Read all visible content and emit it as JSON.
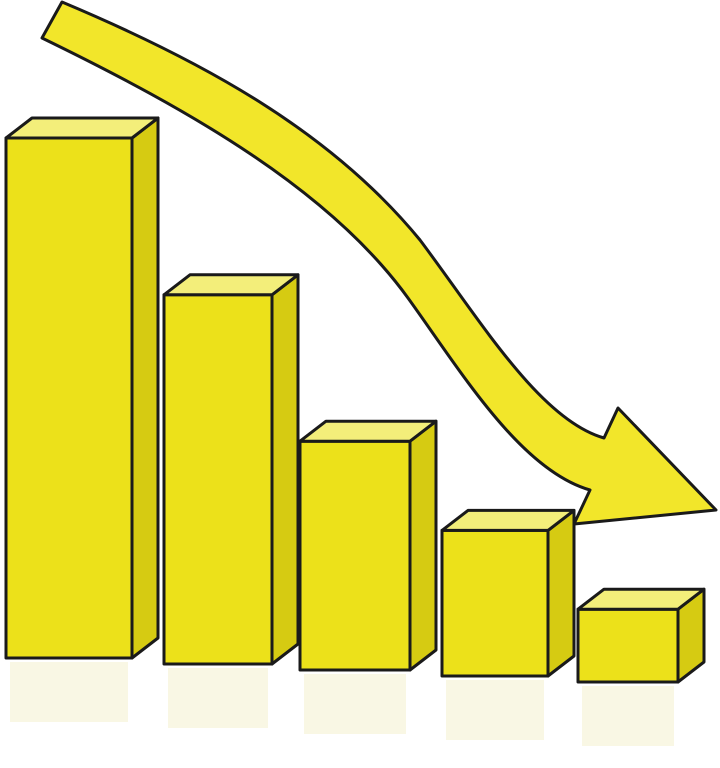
{
  "colors": {
    "background": "#ffffff",
    "front": "#ece11a",
    "side": "#d6cb12",
    "top": "#f3ee7a",
    "outline": "#1a1a1a",
    "arrow": "#f2e62a",
    "reflection": "#f6f3d8"
  },
  "illustration": {
    "kind": "declining-3d-bar-graphic",
    "bar_count": 5,
    "relative_heights": [
      1.0,
      0.71,
      0.44,
      0.28,
      0.14
    ],
    "arrow_direction": "down-right"
  }
}
